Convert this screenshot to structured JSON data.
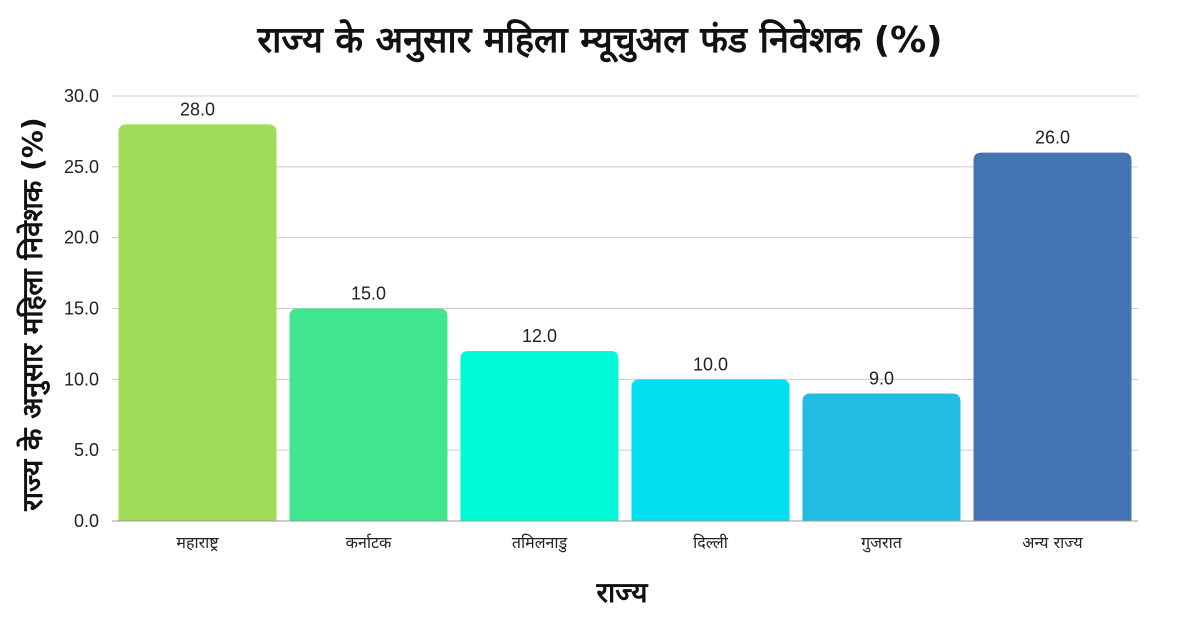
{
  "chart_data": {
    "type": "bar",
    "title": "राज्य के अनुसार महिला म्यूचुअल फंड निवेशक (%)",
    "xlabel": "राज्य",
    "ylabel": "राज्य के अनुसार महिला निवेशक (%)",
    "categories": [
      "महाराष्ट्र",
      "कर्नाटक",
      "तमिलनाडु",
      "दिल्ली",
      "गुजरात",
      "अन्य राज्य"
    ],
    "values": [
      28.0,
      15.0,
      12.0,
      10.0,
      9.0,
      26.0
    ],
    "data_labels": [
      "28.0",
      "15.0",
      "12.0",
      "10.0",
      "9.0",
      "26.0"
    ],
    "colors": [
      "#a0dc57",
      "#40e68e",
      "#00fad8",
      "#00e0ee",
      "#22bce2",
      "#4574b2"
    ],
    "ylim": [
      0,
      30
    ],
    "yticks": [
      0,
      5,
      10,
      15,
      20,
      25,
      30
    ],
    "ytick_labels": [
      "0.0",
      "5.0",
      "10.0",
      "15.0",
      "20.0",
      "25.0",
      "30.0"
    ],
    "grid": true,
    "legend": "none"
  }
}
